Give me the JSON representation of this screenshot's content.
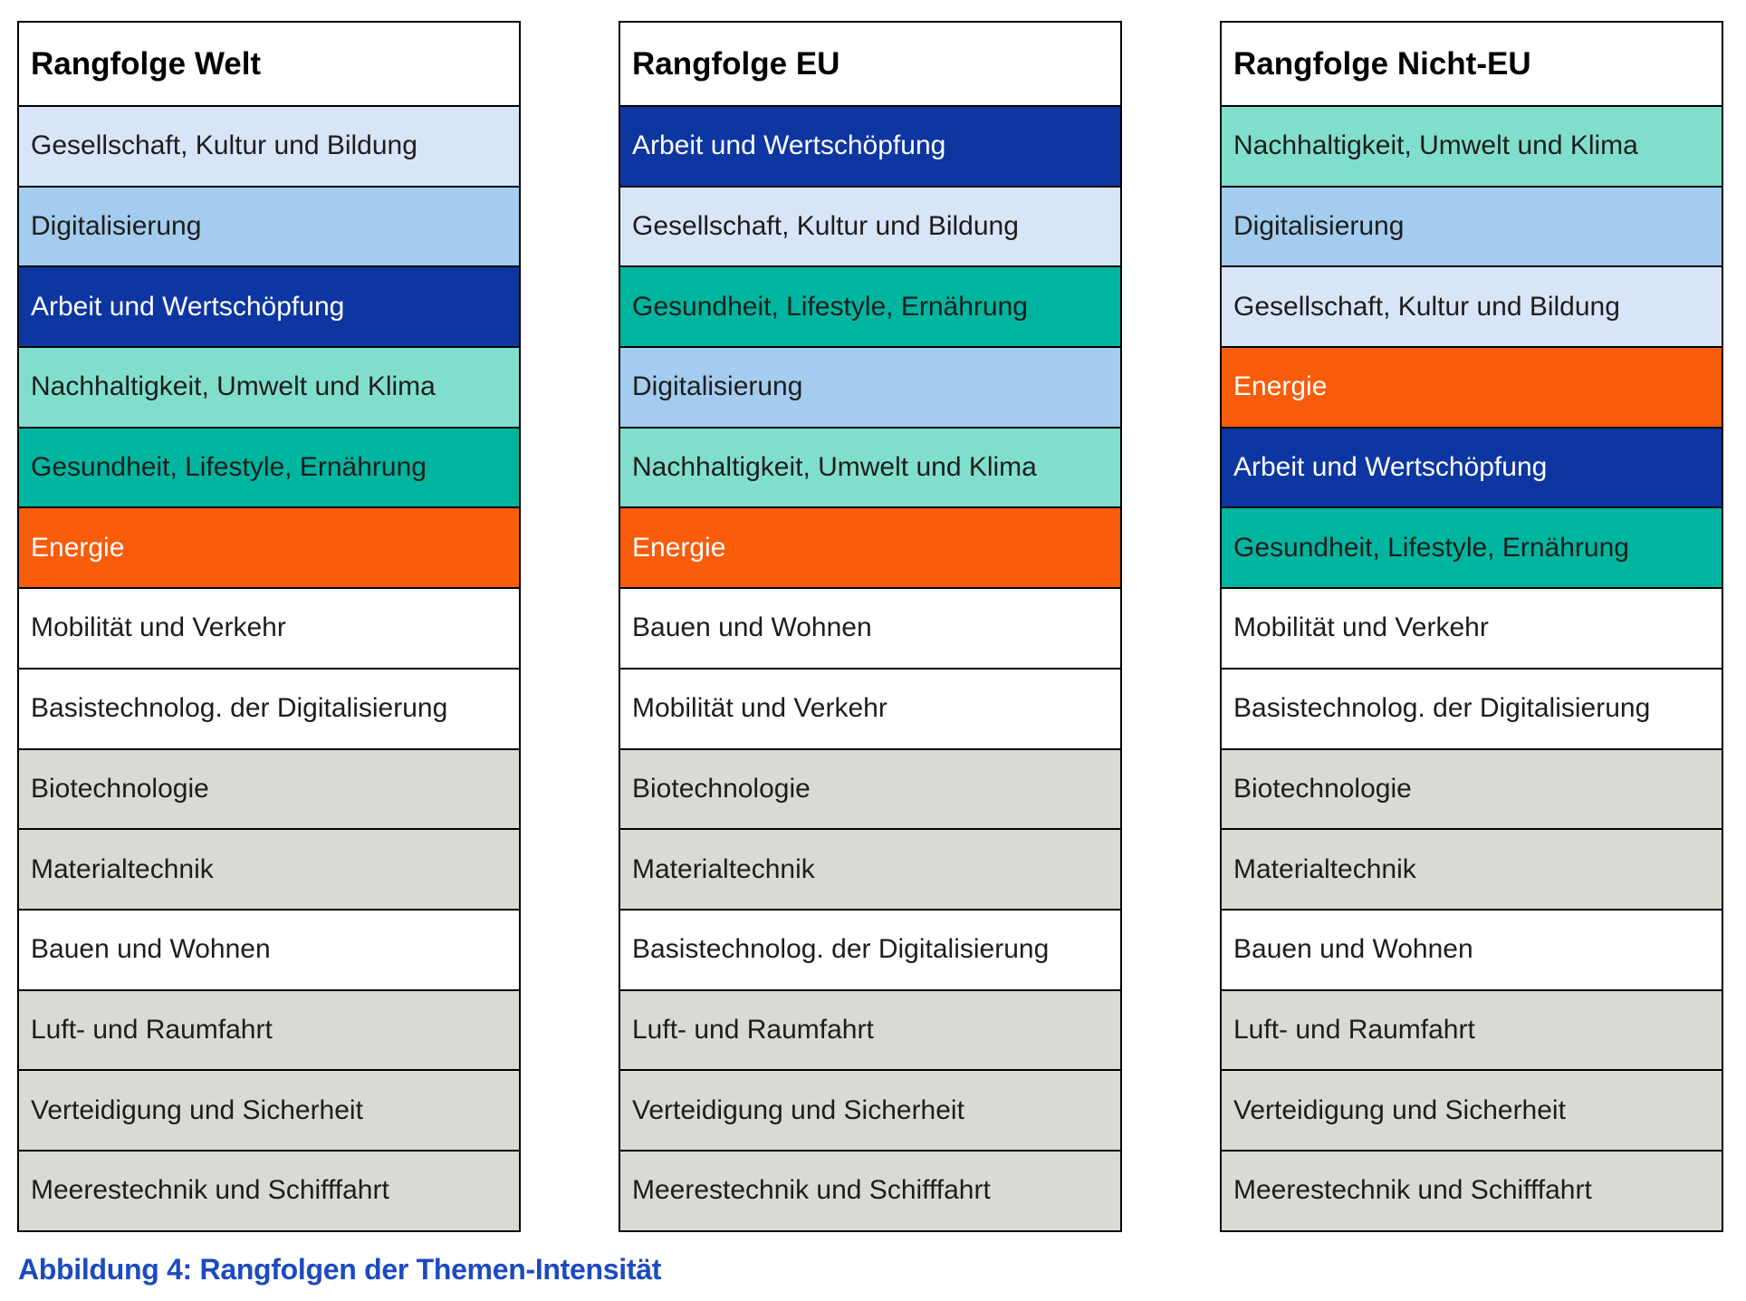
{
  "figure": {
    "caption": "Abbildung 4: Rangfolgen der Themen-Intensität"
  },
  "colors": {
    "pale_blue": "#D8E4F8",
    "sky_blue": "#A3CCEE",
    "dark_blue": "#0E36A1",
    "mint": "#80DFCC",
    "teal": "#00B5A0",
    "orange": "#F95C0A",
    "white": "#FFFFFF",
    "gray": "#DAD9D4",
    "border": "#000000",
    "text_dark": "#1D1D1B",
    "text_light": "#FFFFFF",
    "caption_blue": "#1C4AC2"
  },
  "chart_data": {
    "type": "table",
    "title": "Rangfolgen der Themen-Intensität",
    "columns": [
      {
        "title": "Rangfolge Welt",
        "rows": [
          {
            "rank": 1,
            "label": "Gesellschaft, Kultur und Bildung",
            "fill": "pale_blue",
            "text_color": "dark"
          },
          {
            "rank": 2,
            "label": "Digitalisierung",
            "fill": "sky_blue",
            "text_color": "dark"
          },
          {
            "rank": 3,
            "label": "Arbeit und Wertschöpfung",
            "fill": "dark_blue",
            "text_color": "light"
          },
          {
            "rank": 4,
            "label": "Nachhaltigkeit, Umwelt und Klima",
            "fill": "mint",
            "text_color": "dark"
          },
          {
            "rank": 5,
            "label": "Gesundheit, Lifestyle, Ernährung",
            "fill": "teal",
            "text_color": "dark"
          },
          {
            "rank": 6,
            "label": "Energie",
            "fill": "orange",
            "text_color": "light"
          },
          {
            "rank": 7,
            "label": "Mobilität und Verkehr",
            "fill": "white",
            "text_color": "dark"
          },
          {
            "rank": 8,
            "label": "Basistechnolog. der Digitalisierung",
            "fill": "white",
            "text_color": "dark"
          },
          {
            "rank": 9,
            "label": "Biotechnologie",
            "fill": "gray",
            "text_color": "dark"
          },
          {
            "rank": 10,
            "label": "Materialtechnik",
            "fill": "gray",
            "text_color": "dark"
          },
          {
            "rank": 11,
            "label": "Bauen und Wohnen",
            "fill": "white",
            "text_color": "dark"
          },
          {
            "rank": 12,
            "label": "Luft- und Raumfahrt",
            "fill": "gray",
            "text_color": "dark"
          },
          {
            "rank": 13,
            "label": "Verteidigung und Sicherheit",
            "fill": "gray",
            "text_color": "dark"
          },
          {
            "rank": 14,
            "label": "Meerestechnik und Schifffahrt",
            "fill": "gray",
            "text_color": "dark"
          }
        ]
      },
      {
        "title": "Rangfolge EU",
        "rows": [
          {
            "rank": 1,
            "label": "Arbeit und Wertschöpfung",
            "fill": "dark_blue",
            "text_color": "light"
          },
          {
            "rank": 2,
            "label": "Gesellschaft, Kultur und Bildung",
            "fill": "pale_blue",
            "text_color": "dark"
          },
          {
            "rank": 3,
            "label": "Gesundheit, Lifestyle, Ernährung",
            "fill": "teal",
            "text_color": "dark"
          },
          {
            "rank": 4,
            "label": "Digitalisierung",
            "fill": "sky_blue",
            "text_color": "dark"
          },
          {
            "rank": 5,
            "label": "Nachhaltigkeit, Umwelt und Klima",
            "fill": "mint",
            "text_color": "dark"
          },
          {
            "rank": 6,
            "label": "Energie",
            "fill": "orange",
            "text_color": "light"
          },
          {
            "rank": 7,
            "label": "Bauen und Wohnen",
            "fill": "white",
            "text_color": "dark"
          },
          {
            "rank": 8,
            "label": "Mobilität und Verkehr",
            "fill": "white",
            "text_color": "dark"
          },
          {
            "rank": 9,
            "label": "Biotechnologie",
            "fill": "gray",
            "text_color": "dark"
          },
          {
            "rank": 10,
            "label": "Materialtechnik",
            "fill": "gray",
            "text_color": "dark"
          },
          {
            "rank": 11,
            "label": "Basistechnolog. der Digitalisierung",
            "fill": "white",
            "text_color": "dark"
          },
          {
            "rank": 12,
            "label": "Luft- und Raumfahrt",
            "fill": "gray",
            "text_color": "dark"
          },
          {
            "rank": 13,
            "label": "Verteidigung und Sicherheit",
            "fill": "gray",
            "text_color": "dark"
          },
          {
            "rank": 14,
            "label": "Meerestechnik und Schifffahrt",
            "fill": "gray",
            "text_color": "dark"
          }
        ]
      },
      {
        "title": "Rangfolge Nicht-EU",
        "rows": [
          {
            "rank": 1,
            "label": "Nachhaltigkeit, Umwelt und Klima",
            "fill": "mint",
            "text_color": "dark"
          },
          {
            "rank": 2,
            "label": "Digitalisierung",
            "fill": "sky_blue",
            "text_color": "dark"
          },
          {
            "rank": 3,
            "label": "Gesellschaft, Kultur und Bildung",
            "fill": "pale_blue",
            "text_color": "dark"
          },
          {
            "rank": 4,
            "label": "Energie",
            "fill": "orange",
            "text_color": "light"
          },
          {
            "rank": 5,
            "label": "Arbeit und Wertschöpfung",
            "fill": "dark_blue",
            "text_color": "light"
          },
          {
            "rank": 6,
            "label": "Gesundheit, Lifestyle, Ernährung",
            "fill": "teal",
            "text_color": "dark"
          },
          {
            "rank": 7,
            "label": "Mobilität und Verkehr",
            "fill": "white",
            "text_color": "dark"
          },
          {
            "rank": 8,
            "label": "Basistechnolog. der Digitalisierung",
            "fill": "white",
            "text_color": "dark"
          },
          {
            "rank": 9,
            "label": "Biotechnologie",
            "fill": "gray",
            "text_color": "dark"
          },
          {
            "rank": 10,
            "label": "Materialtechnik",
            "fill": "gray",
            "text_color": "dark"
          },
          {
            "rank": 11,
            "label": "Bauen und Wohnen",
            "fill": "white",
            "text_color": "dark"
          },
          {
            "rank": 12,
            "label": "Luft- und Raumfahrt",
            "fill": "gray",
            "text_color": "dark"
          },
          {
            "rank": 13,
            "label": "Verteidigung und Sicherheit",
            "fill": "gray",
            "text_color": "dark"
          },
          {
            "rank": 14,
            "label": "Meerestechnik und Schifffahrt",
            "fill": "gray",
            "text_color": "dark"
          }
        ]
      }
    ]
  }
}
